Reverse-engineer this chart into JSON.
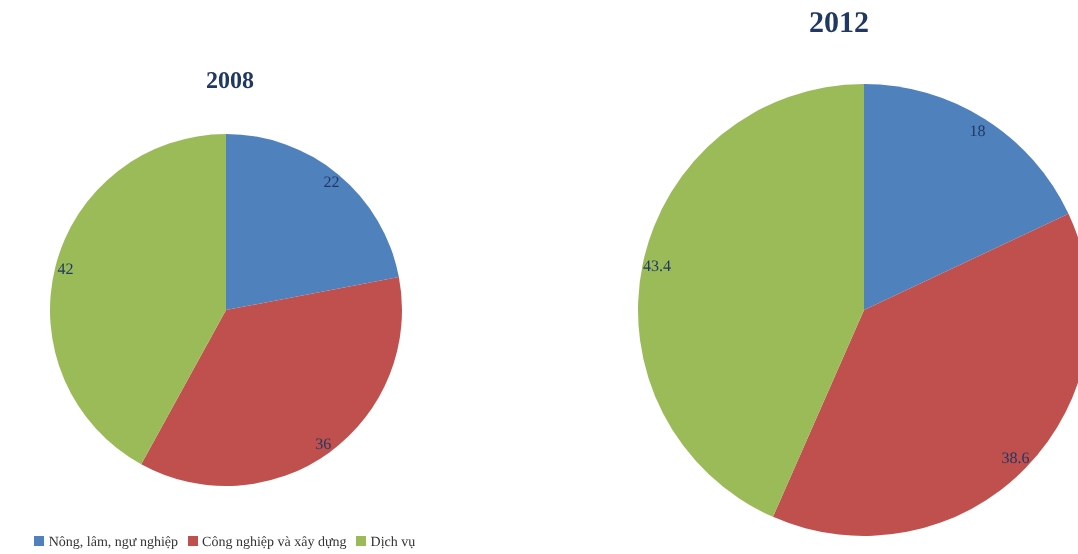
{
  "chart_data": [
    {
      "type": "pie",
      "title": "2008",
      "categories": [
        "Nông, lâm, ngư nghiệp",
        "Công nghiệp và xây dựng",
        "Dịch vụ"
      ],
      "values": [
        22,
        36,
        42
      ],
      "colors": [
        "#4f81bd",
        "#c0504d",
        "#9bbb59"
      ],
      "data_labels": true,
      "legend": "bottom"
    },
    {
      "type": "pie",
      "title": "2012",
      "values": [
        18,
        38.6,
        43.4
      ],
      "colors": [
        "#4f81bd",
        "#c0504d",
        "#9bbb59"
      ],
      "data_labels": true
    }
  ]
}
